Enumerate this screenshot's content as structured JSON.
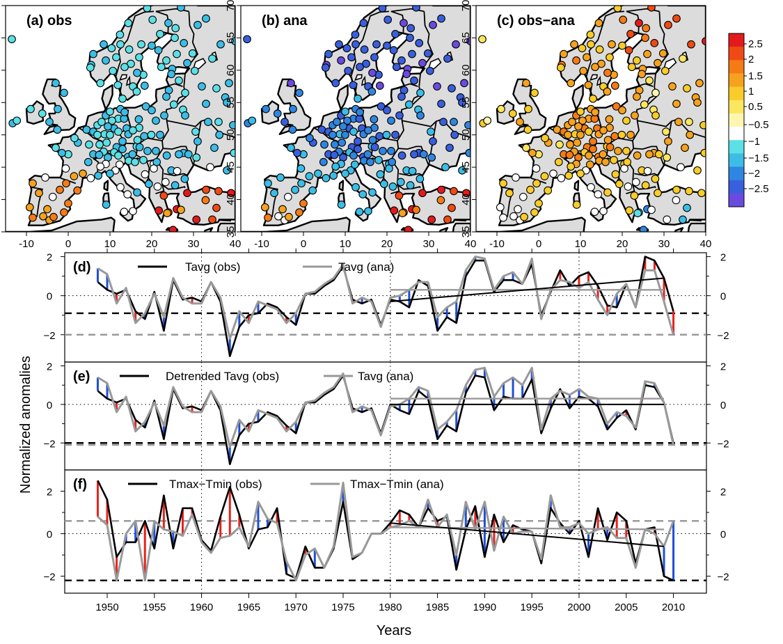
{
  "figure": {
    "ylabel": "Normalized anomalies",
    "xlabel": "Years",
    "colors": {
      "obs": "#000000",
      "ana": "#999999",
      "positive_diff": "#e8221c",
      "negative_diff": "#1f4fd8",
      "land": "#dcdcdc",
      "sea": "#ffffff"
    }
  },
  "maps": {
    "lon_ticks": [
      "-10",
      "0",
      "10",
      "20",
      "30",
      "40"
    ],
    "lat_ticks": [
      "35",
      "40",
      "45",
      "50",
      "55",
      "60",
      "65",
      "70"
    ],
    "panels": [
      {
        "label": "(a) obs",
        "scheme": "obs"
      },
      {
        "label": "(b) ana",
        "scheme": "ana"
      },
      {
        "label": "(c) obs−ana",
        "scheme": "diff"
      }
    ],
    "colorbar": {
      "labels": [
        "2.5",
        "2",
        "1.5",
        "1",
        "0.5",
        "−0.5",
        "−1",
        "−1.5",
        "−2",
        "−2.5"
      ],
      "colors": [
        "#e31a1c",
        "#f04a14",
        "#f47b16",
        "#f6a21e",
        "#f9cc2a",
        "#fbe660",
        "#fdf6b0",
        "#ffffff",
        "#5be0e6",
        "#3cbde6",
        "#2f86e0",
        "#3a5fdd",
        "#6a4bdf"
      ]
    }
  },
  "chart_data": [
    {
      "type": "line",
      "panel": "(d)",
      "x": [
        1949,
        1950,
        1951,
        1952,
        1953,
        1954,
        1955,
        1956,
        1957,
        1958,
        1959,
        1960,
        1961,
        1962,
        1963,
        1964,
        1965,
        1966,
        1967,
        1968,
        1969,
        1970,
        1971,
        1972,
        1973,
        1974,
        1975,
        1976,
        1977,
        1978,
        1979,
        1980,
        1981,
        1982,
        1983,
        1984,
        1985,
        1986,
        1987,
        1988,
        1989,
        1990,
        1991,
        1992,
        1993,
        1994,
        1995,
        1996,
        1997,
        1998,
        1999,
        2000,
        2001,
        2002,
        2003,
        2004,
        2005,
        2006,
        2007,
        2008,
        2009,
        2010
      ],
      "series": [
        {
          "name": "Tavg (obs)",
          "values": [
            0.7,
            0.3,
            0.1,
            0.3,
            -0.8,
            -1.2,
            0.2,
            -1.8,
            0.8,
            -0.2,
            -0.1,
            -0.3,
            0.7,
            -0.3,
            -3.1,
            -1.6,
            -1.0,
            -0.9,
            -0.4,
            -0.6,
            -1.1,
            -1.5,
            0.1,
            0.1,
            0.5,
            0.8,
            1.5,
            -0.2,
            -0.4,
            -0.2,
            -1.5,
            -0.2,
            -0.3,
            -0.6,
            0.8,
            0.5,
            -1.8,
            -1.1,
            -1.4,
            1.0,
            1.8,
            1.8,
            0.2,
            0.8,
            0.8,
            0.6,
            1.6,
            -1.0,
            0.2,
            1.3,
            0.5,
            1.0,
            1.2,
            0.5,
            -0.5,
            -0.6,
            0.6,
            -0.6,
            2.0,
            1.8,
            0.9,
            -0.8
          ]
        },
        {
          "name": "Tavg (ana)",
          "values": [
            1.4,
            1.1,
            -0.4,
            0.4,
            -1.4,
            -0.9,
            0.1,
            -1.1,
            0.9,
            -0.1,
            -0.4,
            -0.4,
            0.7,
            -0.1,
            -2.2,
            -0.8,
            -1.4,
            -0.3,
            -0.5,
            -0.7,
            -1.4,
            -0.9,
            0.1,
            0.2,
            0.6,
            0.9,
            1.6,
            -0.4,
            -0.1,
            -0.3,
            -1.6,
            -0.1,
            0.0,
            0.3,
            0.7,
            0.7,
            -1.1,
            -0.6,
            -0.3,
            1.3,
            2.0,
            1.9,
            0.3,
            1.0,
            1.2,
            0.6,
            1.9,
            -1.2,
            0.3,
            0.8,
            0.7,
            0.4,
            0.7,
            -0.2,
            -1.0,
            0.1,
            0.6,
            -0.6,
            1.3,
            1.3,
            -0.3,
            -2.0
          ]
        }
      ],
      "trend_obs": [
        [
          1980,
          -0.3
        ],
        [
          2009,
          0.9
        ]
      ],
      "trend_ana": [
        [
          1980,
          0.3
        ],
        [
          2009,
          0.3
        ]
      ],
      "hline_obs": -0.9,
      "hline_ana": -2.0,
      "ylim": [
        -3.4,
        2.2
      ],
      "yticks": [
        "2",
        "0",
        "−2"
      ]
    },
    {
      "type": "line",
      "panel": "(e)",
      "x": [
        1949,
        1950,
        1951,
        1952,
        1953,
        1954,
        1955,
        1956,
        1957,
        1958,
        1959,
        1960,
        1961,
        1962,
        1963,
        1964,
        1965,
        1966,
        1967,
        1968,
        1969,
        1970,
        1971,
        1972,
        1973,
        1974,
        1975,
        1976,
        1977,
        1978,
        1979,
        1980,
        1981,
        1982,
        1983,
        1984,
        1985,
        1986,
        1987,
        1988,
        1989,
        1990,
        1991,
        1992,
        1993,
        1994,
        1995,
        1996,
        1997,
        1998,
        1999,
        2000,
        2001,
        2002,
        2003,
        2004,
        2005,
        2006,
        2007,
        2008,
        2009,
        2010
      ],
      "series": [
        {
          "name": "Detrended Tavg (obs)",
          "values": [
            0.7,
            0.3,
            0.1,
            0.3,
            -0.8,
            -1.2,
            0.2,
            -1.8,
            0.8,
            -0.2,
            -0.1,
            -0.3,
            0.7,
            -0.3,
            -3.1,
            -1.6,
            -1.0,
            -0.9,
            -0.4,
            -0.6,
            -1.1,
            -1.5,
            0.1,
            0.1,
            0.5,
            0.8,
            1.5,
            -0.2,
            -0.4,
            -0.2,
            -1.5,
            0.0,
            -0.3,
            -0.5,
            0.7,
            0.3,
            -1.8,
            -1.1,
            -1.4,
            0.6,
            1.5,
            1.4,
            -0.3,
            0.4,
            0.3,
            0.3,
            1.3,
            -1.5,
            -0.2,
            0.8,
            -0.2,
            0.4,
            0.3,
            -0.1,
            -1.3,
            -0.7,
            -0.3,
            -1.3,
            1.0,
            0.9,
            0.1,
            -2.0
          ]
        },
        {
          "name": "Tavg (ana)",
          "values": [
            1.4,
            1.1,
            -0.4,
            0.4,
            -1.4,
            -0.9,
            0.1,
            -1.1,
            0.9,
            -0.1,
            -0.4,
            -0.4,
            0.7,
            -0.1,
            -2.2,
            -0.8,
            -1.4,
            -0.3,
            -0.5,
            -0.7,
            -1.4,
            -0.9,
            0.1,
            0.2,
            0.6,
            0.9,
            1.6,
            -0.4,
            -0.1,
            -0.3,
            -1.6,
            -0.1,
            0.0,
            0.3,
            0.9,
            0.7,
            -1.3,
            -0.9,
            -0.3,
            1.0,
            1.8,
            1.9,
            0.4,
            1.1,
            1.4,
            1.0,
            1.9,
            -1.3,
            0.3,
            0.7,
            0.5,
            0.8,
            0.4,
            0.3,
            -1.0,
            -0.4,
            -0.6,
            -1.2,
            1.2,
            1.1,
            0.1,
            -2.1
          ]
        }
      ],
      "trend_obs": [
        [
          1980,
          0.0
        ],
        [
          2009,
          0.0
        ]
      ],
      "trend_ana": [
        [
          1980,
          0.3
        ],
        [
          2009,
          0.3
        ]
      ],
      "hline_obs": -2.0,
      "hline_ana": -2.1,
      "ylim": [
        -3.4,
        2.2
      ],
      "yticks": [
        "2",
        "0",
        "−2"
      ]
    },
    {
      "type": "line",
      "panel": "(f)",
      "x": [
        1949,
        1950,
        1951,
        1952,
        1953,
        1954,
        1955,
        1956,
        1957,
        1958,
        1959,
        1960,
        1961,
        1962,
        1963,
        1964,
        1965,
        1966,
        1967,
        1968,
        1969,
        1970,
        1971,
        1972,
        1973,
        1974,
        1975,
        1976,
        1977,
        1978,
        1979,
        1980,
        1981,
        1982,
        1983,
        1984,
        1985,
        1986,
        1987,
        1988,
        1989,
        1990,
        1991,
        1992,
        1993,
        1994,
        1995,
        1996,
        1997,
        1998,
        1999,
        2000,
        2001,
        2002,
        2003,
        2004,
        2005,
        2006,
        2007,
        2008,
        2009,
        2010
      ],
      "series": [
        {
          "name": "Tmax−Tmin (obs)",
          "values": [
            2.5,
            1.6,
            -1.1,
            -0.4,
            -0.4,
            0.6,
            -0.7,
            1.8,
            -0.7,
            1.2,
            1.2,
            -0.3,
            -0.8,
            0.8,
            2.2,
            0.9,
            -0.7,
            0.2,
            0.3,
            1.2,
            -1.9,
            -2.1,
            -0.6,
            -1.6,
            -1.6,
            -0.7,
            1.5,
            -1.2,
            -0.9,
            0.0,
            0.0,
            0.5,
            1.1,
            0.9,
            0.3,
            1.2,
            0.6,
            0.8,
            -1.7,
            0.2,
            1.3,
            -1.1,
            0.9,
            -0.4,
            0.4,
            0.2,
            0.1,
            -1.4,
            1.2,
            0.5,
            0.0,
            0.6,
            -1.1,
            1.2,
            -0.3,
            1.0,
            0.6,
            -1.4,
            0.2,
            0.3,
            -2.0,
            -2.2
          ]
        },
        {
          "name": "Tmax−Tmin (ana)",
          "values": [
            0.8,
            0.4,
            -2.2,
            0.0,
            0.6,
            -2.2,
            0.6,
            0.2,
            0.1,
            -0.1,
            0.9,
            -0.4,
            -0.9,
            -0.2,
            -0.1,
            0.3,
            -0.6,
            1.5,
            0.7,
            0.5,
            -1.3,
            -2.2,
            -1.0,
            -0.7,
            -1.6,
            -0.6,
            2.4,
            -1.1,
            -0.9,
            0.0,
            0.0,
            0.3,
            0.4,
            0.6,
            0.3,
            1.6,
            0.3,
            0.9,
            -1.0,
            1.5,
            0.2,
            1.5,
            -0.8,
            0.8,
            0.0,
            0.1,
            0.1,
            -1.2,
            1.8,
            0.3,
            0.3,
            0.5,
            0.0,
            0.2,
            0.3,
            -0.2,
            -0.2,
            -1.6,
            0.2,
            0.0,
            -0.6,
            0.6
          ]
        }
      ],
      "trend_obs": [
        [
          1980,
          0.5
        ],
        [
          2009,
          -0.6
        ]
      ],
      "trend_ana": [
        [
          1980,
          0.3
        ],
        [
          2009,
          0.2
        ]
      ],
      "hline_obs": -2.2,
      "hline_ana": 0.6,
      "ylim": [
        -2.8,
        3.0
      ],
      "yticks": [
        "2",
        "0",
        "−2"
      ]
    }
  ],
  "axis": {
    "year_ticks": [
      "1950",
      "1955",
      "1960",
      "1965",
      "1970",
      "1975",
      "1980",
      "1985",
      "1990",
      "1995",
      "2000",
      "2005",
      "2010"
    ]
  }
}
